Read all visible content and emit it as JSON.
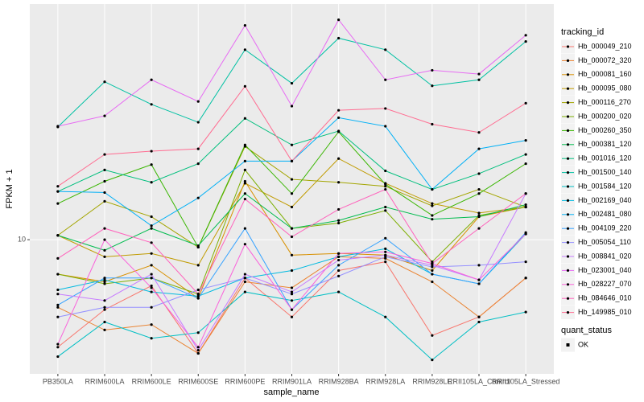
{
  "chart_data": {
    "type": "line",
    "x_label": "sample_name",
    "y_label": "FPKM + 1",
    "log_scale": true,
    "grid": true,
    "ylim": [
      4,
      50
    ],
    "yticks": [
      10
    ],
    "point_color": "#000000",
    "legend_title": "tracking_id",
    "shape_legend": {
      "title": "quant_status",
      "labels": [
        "OK"
      ]
    },
    "categories": [
      "PB350LA",
      "RRIM600LA",
      "RRIM600LE",
      "RRIM600SE",
      "RRIM600PE",
      "RRIM901LA",
      "RRIM928BA",
      "RRIM928LA",
      "RRIM928LE",
      "RRII105LA_Control",
      "RRII105LA_Stressed"
    ],
    "series": [
      {
        "name": "Hb_000049_210",
        "color": "#F8766D",
        "values": [
          4.8,
          6.2,
          7.3,
          4.6,
          7.7,
          5.9,
          8.1,
          8.6,
          5.2,
          5.9,
          7.7
        ]
      },
      {
        "name": "Hb_000072_320",
        "color": "#EA8331",
        "values": [
          6.3,
          5.4,
          5.6,
          4.6,
          7.5,
          7.2,
          8.9,
          8.8,
          7.5,
          5.9,
          7.7
        ]
      },
      {
        "name": "Hb_000081_160",
        "color": "#D89000",
        "values": [
          7.9,
          7.5,
          8.4,
          6.7,
          14.9,
          9.0,
          9.1,
          9.0,
          8.1,
          11.7,
          12.5
        ]
      },
      {
        "name": "Hb_000095_080",
        "color": "#C09B00",
        "values": [
          10.3,
          8.9,
          9.1,
          8.4,
          14.7,
          12.5,
          17.4,
          14.7,
          12.8,
          12.0,
          12.5
        ]
      },
      {
        "name": "Hb_000116_270",
        "color": "#A3A500",
        "values": [
          10.3,
          13.0,
          11.7,
          9.5,
          18.9,
          15.1,
          14.8,
          14.4,
          12.6,
          14.1,
          12.5
        ]
      },
      {
        "name": "Hb_000200_020",
        "color": "#7CAE00",
        "values": [
          7.9,
          7.4,
          7.7,
          6.9,
          16.1,
          10.8,
          11.2,
          12.2,
          8.6,
          11.8,
          12.5
        ]
      },
      {
        "name": "Hb_000260_350",
        "color": "#39B600",
        "values": [
          12.8,
          14.9,
          16.7,
          9.5,
          19.1,
          13.7,
          20.9,
          14.6,
          11.8,
          13.7,
          16.8
        ]
      },
      {
        "name": "Hb_000381_120",
        "color": "#00BB4E",
        "values": [
          10.3,
          9.3,
          10.8,
          9.6,
          13.7,
          10.8,
          11.4,
          12.5,
          11.5,
          11.7,
          12.7
        ]
      },
      {
        "name": "Hb_001016_120",
        "color": "#00BF7D",
        "values": [
          13.9,
          16.1,
          14.8,
          16.8,
          22.9,
          19.1,
          21.0,
          16.0,
          14.1,
          15.7,
          17.9
        ]
      },
      {
        "name": "Hb_001500_140",
        "color": "#00C1A3",
        "values": [
          21.6,
          29.4,
          25.2,
          22.3,
          36.6,
          29.1,
          39.6,
          36.6,
          28.6,
          29.8,
          38.7
        ]
      },
      {
        "name": "Hb_001584_120",
        "color": "#00BFC4",
        "values": [
          4.5,
          5.7,
          5.1,
          5.3,
          7.0,
          6.6,
          7.0,
          5.9,
          4.4,
          5.7,
          6.1
        ]
      },
      {
        "name": "Hb_002169_040",
        "color": "#00BAE0",
        "values": [
          7.1,
          7.6,
          7.0,
          6.8,
          7.7,
          8.1,
          8.9,
          9.4,
          7.9,
          7.4,
          10.4
        ]
      },
      {
        "name": "Hb_002481_080",
        "color": "#00B0F6",
        "values": [
          13.9,
          13.8,
          11.0,
          13.3,
          17.1,
          17.1,
          23.0,
          21.7,
          14.1,
          18.6,
          19.7
        ]
      },
      {
        "name": "Hb_004109_220",
        "color": "#35A2FF",
        "values": [
          6.4,
          7.7,
          7.7,
          6.7,
          10.8,
          6.2,
          8.4,
          10.1,
          7.9,
          7.4,
          10.5
        ]
      },
      {
        "name": "Hb_005054_110",
        "color": "#9590FF",
        "values": [
          5.9,
          6.3,
          6.3,
          7.1,
          7.7,
          6.9,
          7.8,
          8.9,
          8.3,
          8.4,
          8.6
        ]
      },
      {
        "name": "Hb_008841_020",
        "color": "#C77CFF",
        "values": [
          6.9,
          6.6,
          7.9,
          4.7,
          7.9,
          7.0,
          8.7,
          9.0,
          8.4,
          7.6,
          13.7
        ]
      },
      {
        "name": "Hb_023001_040",
        "color": "#E76BF3",
        "values": [
          21.7,
          23.3,
          29.8,
          25.7,
          43.2,
          24.9,
          44.9,
          29.8,
          31.8,
          31.0,
          40.4
        ]
      },
      {
        "name": "Hb_028227_070",
        "color": "#FA62DB",
        "values": [
          4.9,
          10.0,
          7.2,
          4.8,
          9.7,
          6.2,
          9.1,
          9.2,
          8.5,
          7.6,
          10.4
        ]
      },
      {
        "name": "Hb_084646_010",
        "color": "#FF62BC",
        "values": [
          8.8,
          10.8,
          9.8,
          6.9,
          13.2,
          10.2,
          12.3,
          14.1,
          8.5,
          10.8,
          13.7
        ]
      },
      {
        "name": "Hb_149985_010",
        "color": "#FF6C91",
        "values": [
          14.4,
          17.9,
          18.3,
          18.6,
          28.5,
          17.1,
          24.2,
          24.5,
          22.0,
          20.8,
          25.4
        ]
      }
    ]
  }
}
